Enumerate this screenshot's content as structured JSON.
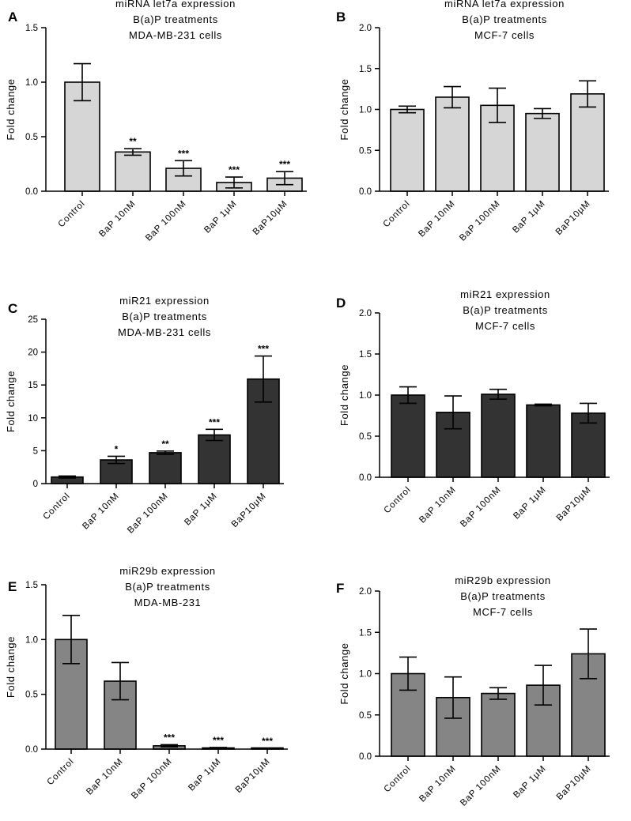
{
  "chart_data": [
    {
      "panel": "A",
      "type": "bar",
      "title_lines": [
        "miRNA let7a expression",
        "B(a)P treatments",
        "MDA-MB-231 cells"
      ],
      "ylabel": "Fold change",
      "categories": [
        "Control",
        "BaP 10nM",
        "BaP 100nM",
        "BaP 1μM",
        "BaP10μM"
      ],
      "values": [
        1.0,
        0.36,
        0.21,
        0.08,
        0.12
      ],
      "errors": [
        0.17,
        0.03,
        0.07,
        0.05,
        0.06
      ],
      "significance": [
        "",
        "**",
        "***",
        "***",
        "***"
      ],
      "ylim": [
        0,
        1.5
      ],
      "yticks": [
        0,
        0.5,
        1.0,
        1.5
      ],
      "ytick_labels": [
        "0.0",
        "0.5",
        "1.0",
        "1.5"
      ],
      "bar_color": "#d6d6d6"
    },
    {
      "panel": "B",
      "type": "bar",
      "title_lines": [
        "miRNA let7a expression",
        "B(a)P treatments",
        "MCF-7 cells"
      ],
      "ylabel": "Fold change",
      "categories": [
        "Control",
        "BaP 10nM",
        "BaP 100nM",
        "BaP 1μM",
        "BaP10μM"
      ],
      "values": [
        1.0,
        1.15,
        1.05,
        0.95,
        1.19
      ],
      "errors": [
        0.04,
        0.13,
        0.21,
        0.06,
        0.16
      ],
      "significance": [
        "",
        "",
        "",
        "",
        ""
      ],
      "ylim": [
        0,
        2.0
      ],
      "yticks": [
        0,
        0.5,
        1.0,
        1.5,
        2.0
      ],
      "ytick_labels": [
        "0.0",
        "0.5",
        "1.0",
        "1.5",
        "2.0"
      ],
      "bar_color": "#d6d6d6"
    },
    {
      "panel": "C",
      "type": "bar",
      "title_lines": [
        "miR21 expression",
        "B(a)P treatments",
        "MDA-MB-231 cells"
      ],
      "ylabel": "Fold change",
      "categories": [
        "Control",
        "BaP 10nM",
        "BaP 100nM",
        "BaP 1μM",
        "BaP10μM"
      ],
      "values": [
        1.0,
        3.6,
        4.7,
        7.4,
        15.9
      ],
      "errors": [
        0.15,
        0.55,
        0.25,
        0.85,
        3.5
      ],
      "significance": [
        "",
        "*",
        "**",
        "***",
        "***"
      ],
      "ylim": [
        0,
        25
      ],
      "yticks": [
        0,
        5,
        10,
        15,
        20,
        25
      ],
      "ytick_labels": [
        "0",
        "5",
        "10",
        "15",
        "20",
        "25"
      ],
      "bar_color": "#333333"
    },
    {
      "panel": "D",
      "type": "bar",
      "title_lines": [
        "miR21 expression",
        "B(a)P treatments",
        "MCF-7 cells"
      ],
      "ylabel": "Fold change",
      "categories": [
        "Control",
        "BaP 10nM",
        "BaP 100nM",
        "BaP 1μM",
        "BaP10μM"
      ],
      "values": [
        1.0,
        0.79,
        1.01,
        0.88,
        0.78
      ],
      "errors": [
        0.1,
        0.2,
        0.06,
        0.01,
        0.12
      ],
      "significance": [
        "",
        "",
        "",
        "",
        ""
      ],
      "ylim": [
        0,
        2.0
      ],
      "yticks": [
        0,
        0.5,
        1.0,
        1.5,
        2.0
      ],
      "ytick_labels": [
        "0.0",
        "0.5",
        "1.0",
        "1.5",
        "2.0"
      ],
      "bar_color": "#333333"
    },
    {
      "panel": "E",
      "type": "bar",
      "title_lines": [
        "miR29b expression",
        "B(a)P treatments",
        "MDA-MB-231"
      ],
      "ylabel": "Fold change",
      "categories": [
        "Control",
        "BaP 10nM",
        "BaP 100nM",
        "BaP 1μM",
        "BaP10μM"
      ],
      "values": [
        1.0,
        0.62,
        0.03,
        0.01,
        0.005
      ],
      "errors": [
        0.22,
        0.17,
        0.01,
        0.005,
        0.003
      ],
      "significance": [
        "",
        "",
        "***",
        "***",
        "***"
      ],
      "ylim": [
        0,
        1.5
      ],
      "yticks": [
        0,
        0.5,
        1.0,
        1.5
      ],
      "ytick_labels": [
        "0.0",
        "0.5",
        "1.0",
        "1.5"
      ],
      "bar_color": "#858585"
    },
    {
      "panel": "F",
      "type": "bar",
      "title_lines": [
        "miR29b expression",
        "B(a)P treatments",
        "MCF-7 cells"
      ],
      "ylabel": "Fold change",
      "categories": [
        "Control",
        "BaP 10nM",
        "BaP 100nM",
        "BaP 1μM",
        "BaP10μM"
      ],
      "values": [
        1.0,
        0.71,
        0.76,
        0.86,
        1.24
      ],
      "errors": [
        0.2,
        0.25,
        0.07,
        0.24,
        0.3
      ],
      "significance": [
        "",
        "",
        "",
        "",
        ""
      ],
      "ylim": [
        0,
        2.0
      ],
      "yticks": [
        0,
        0.5,
        1.0,
        1.5,
        2.0
      ],
      "ytick_labels": [
        "0.0",
        "0.5",
        "1.0",
        "1.5",
        "2.0"
      ],
      "bar_color": "#858585"
    }
  ]
}
